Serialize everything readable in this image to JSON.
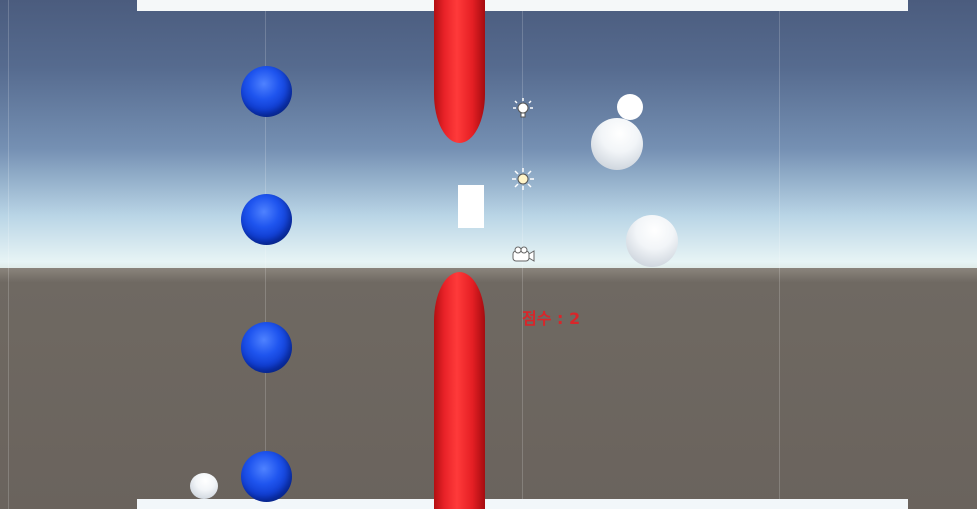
{
  "hud": {
    "score_label": "점수 : 2",
    "score_color": "#d8262a"
  },
  "scene": {
    "sky_color": "#566b8f",
    "ground_color": "#6a635d",
    "player": {
      "shape": "rectangle",
      "color": "#ffffff"
    },
    "pipes": {
      "color": "#e82228",
      "count": 2
    },
    "blue_balls": {
      "color": "#1f55ef",
      "count": 4
    },
    "white_balls": {
      "color": "#f2f5f8",
      "count": 4
    },
    "gizmos": [
      "point-light-icon",
      "directional-light-icon",
      "camera-icon"
    ]
  }
}
